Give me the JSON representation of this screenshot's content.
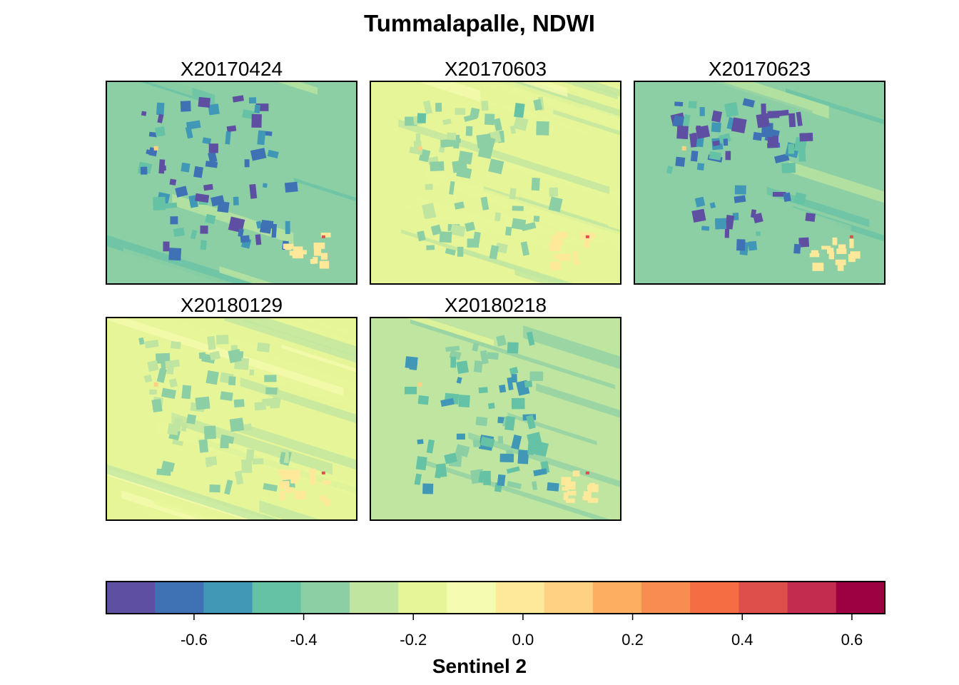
{
  "chart_data": {
    "type": "heatmap",
    "title": "Tummalapalle, NDWI",
    "panels": [
      {
        "name": "X20170424",
        "mean_ndwi": -0.38
      },
      {
        "name": "X20170603",
        "mean_ndwi": -0.22
      },
      {
        "name": "X20170623",
        "mean_ndwi": -0.39
      },
      {
        "name": "X20180129",
        "mean_ndwi": -0.2
      },
      {
        "name": "X20180218",
        "mean_ndwi": -0.3
      }
    ],
    "colorbar": {
      "title": "Sentinel 2",
      "range": [
        -0.76,
        0.66
      ],
      "ticks": [
        {
          "value": -0.6,
          "label": "-0.6"
        },
        {
          "value": -0.4,
          "label": "-0.4"
        },
        {
          "value": -0.2,
          "label": "-0.2"
        },
        {
          "value": 0.0,
          "label": "0.0"
        },
        {
          "value": 0.2,
          "label": "0.2"
        },
        {
          "value": 0.4,
          "label": "0.4"
        },
        {
          "value": 0.6,
          "label": "0.6"
        }
      ],
      "colors": [
        "#5e4fa2",
        "#3f72b5",
        "#4198b6",
        "#66c2a5",
        "#8dcfa4",
        "#bfe5a0",
        "#e6f598",
        "#f5fbb0",
        "#fee99a",
        "#fed282",
        "#fdae61",
        "#f88d52",
        "#f46d43",
        "#de4e4b",
        "#c42c4f",
        "#9e0142"
      ]
    }
  }
}
